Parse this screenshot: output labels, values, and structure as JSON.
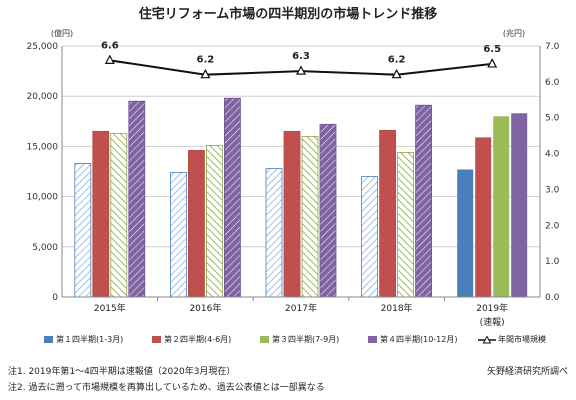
{
  "chart_data": {
    "type": "bar+line",
    "title": "住宅リフォーム市場の四半期別の市場トレンド推移",
    "left_unit": "(億円)",
    "right_unit": "(兆円)",
    "categories": [
      "2015年",
      "2016年",
      "2017年",
      "2018年",
      "2019年"
    ],
    "category_notes": [
      "",
      "",
      "",
      "",
      "(速報)"
    ],
    "ylim_left": [
      0,
      25000
    ],
    "yticks_left": [
      "0",
      "5,000",
      "10,000",
      "15,000",
      "20,000",
      "25,000"
    ],
    "ylim_right": [
      0,
      7.0
    ],
    "yticks_right": [
      "0.0",
      "1.0",
      "2.0",
      "3.0",
      "4.0",
      "5.0",
      "6.0",
      "7.0"
    ],
    "grid": true,
    "series": [
      {
        "name": "第１四半期(1-3月)",
        "color": "#4a7ebb",
        "values": [
          13300,
          12400,
          12800,
          12000,
          12700
        ]
      },
      {
        "name": "第２四半期(4-6月)",
        "color": "#c0504d",
        "values": [
          16500,
          14600,
          16500,
          16600,
          15900
        ]
      },
      {
        "name": "第３四半期(7-9月)",
        "color": "#9bbb59",
        "values": [
          16300,
          15100,
          16000,
          14400,
          18000
        ]
      },
      {
        "name": "第４四半期(10-12月)",
        "color": "#8064a2",
        "values": [
          19500,
          19800,
          17200,
          19100,
          18300
        ]
      }
    ],
    "line_series": {
      "name": "年間市場規模",
      "values": [
        6.6,
        6.2,
        6.3,
        6.2,
        6.5
      ],
      "labels": [
        "6.6",
        "6.2",
        "6.3",
        "6.2",
        "6.5"
      ]
    }
  },
  "notes": {
    "note1": "注1. 2019年第1～4四半期は速報値（2020年3月現在）",
    "note2": "注2. 過去に遡って市場規模を再算出しているため、過去公表値とは一部異なる",
    "source": "矢野経済研究所調べ"
  }
}
